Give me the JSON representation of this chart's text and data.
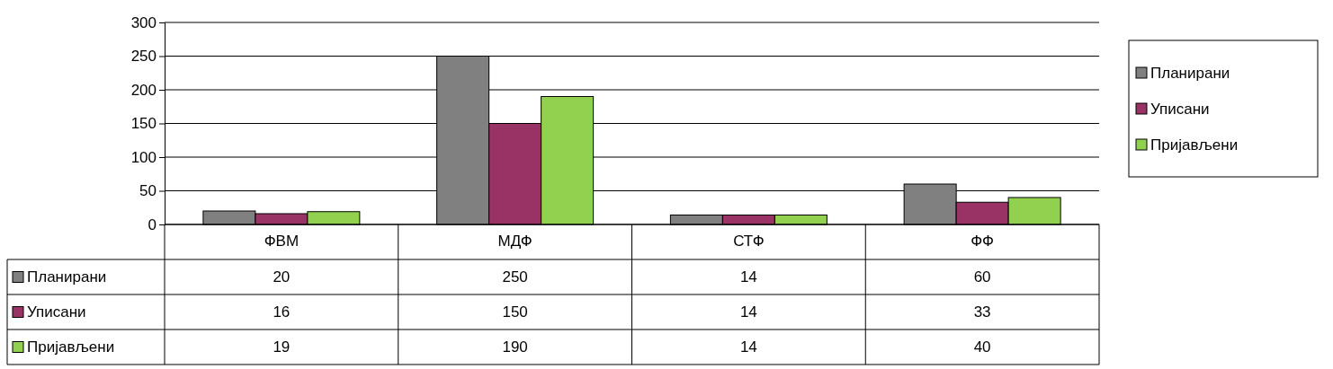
{
  "chart_data": {
    "type": "bar",
    "categories": [
      "ФВМ",
      "МДФ",
      "СТФ",
      "ФФ"
    ],
    "series": [
      {
        "name": "Планирани",
        "color": "#808080",
        "values": [
          20,
          250,
          14,
          60
        ]
      },
      {
        "name": "Уписани",
        "color": "#993366",
        "values": [
          16,
          150,
          14,
          33
        ]
      },
      {
        "name": "Пријављени",
        "color": "#92d050",
        "values": [
          19,
          190,
          14,
          40
        ]
      }
    ],
    "ylim": [
      0,
      300
    ],
    "yticks": [
      0,
      50,
      100,
      150,
      200,
      250,
      300
    ],
    "grid": "y",
    "legend": "right",
    "data_labels": true
  }
}
